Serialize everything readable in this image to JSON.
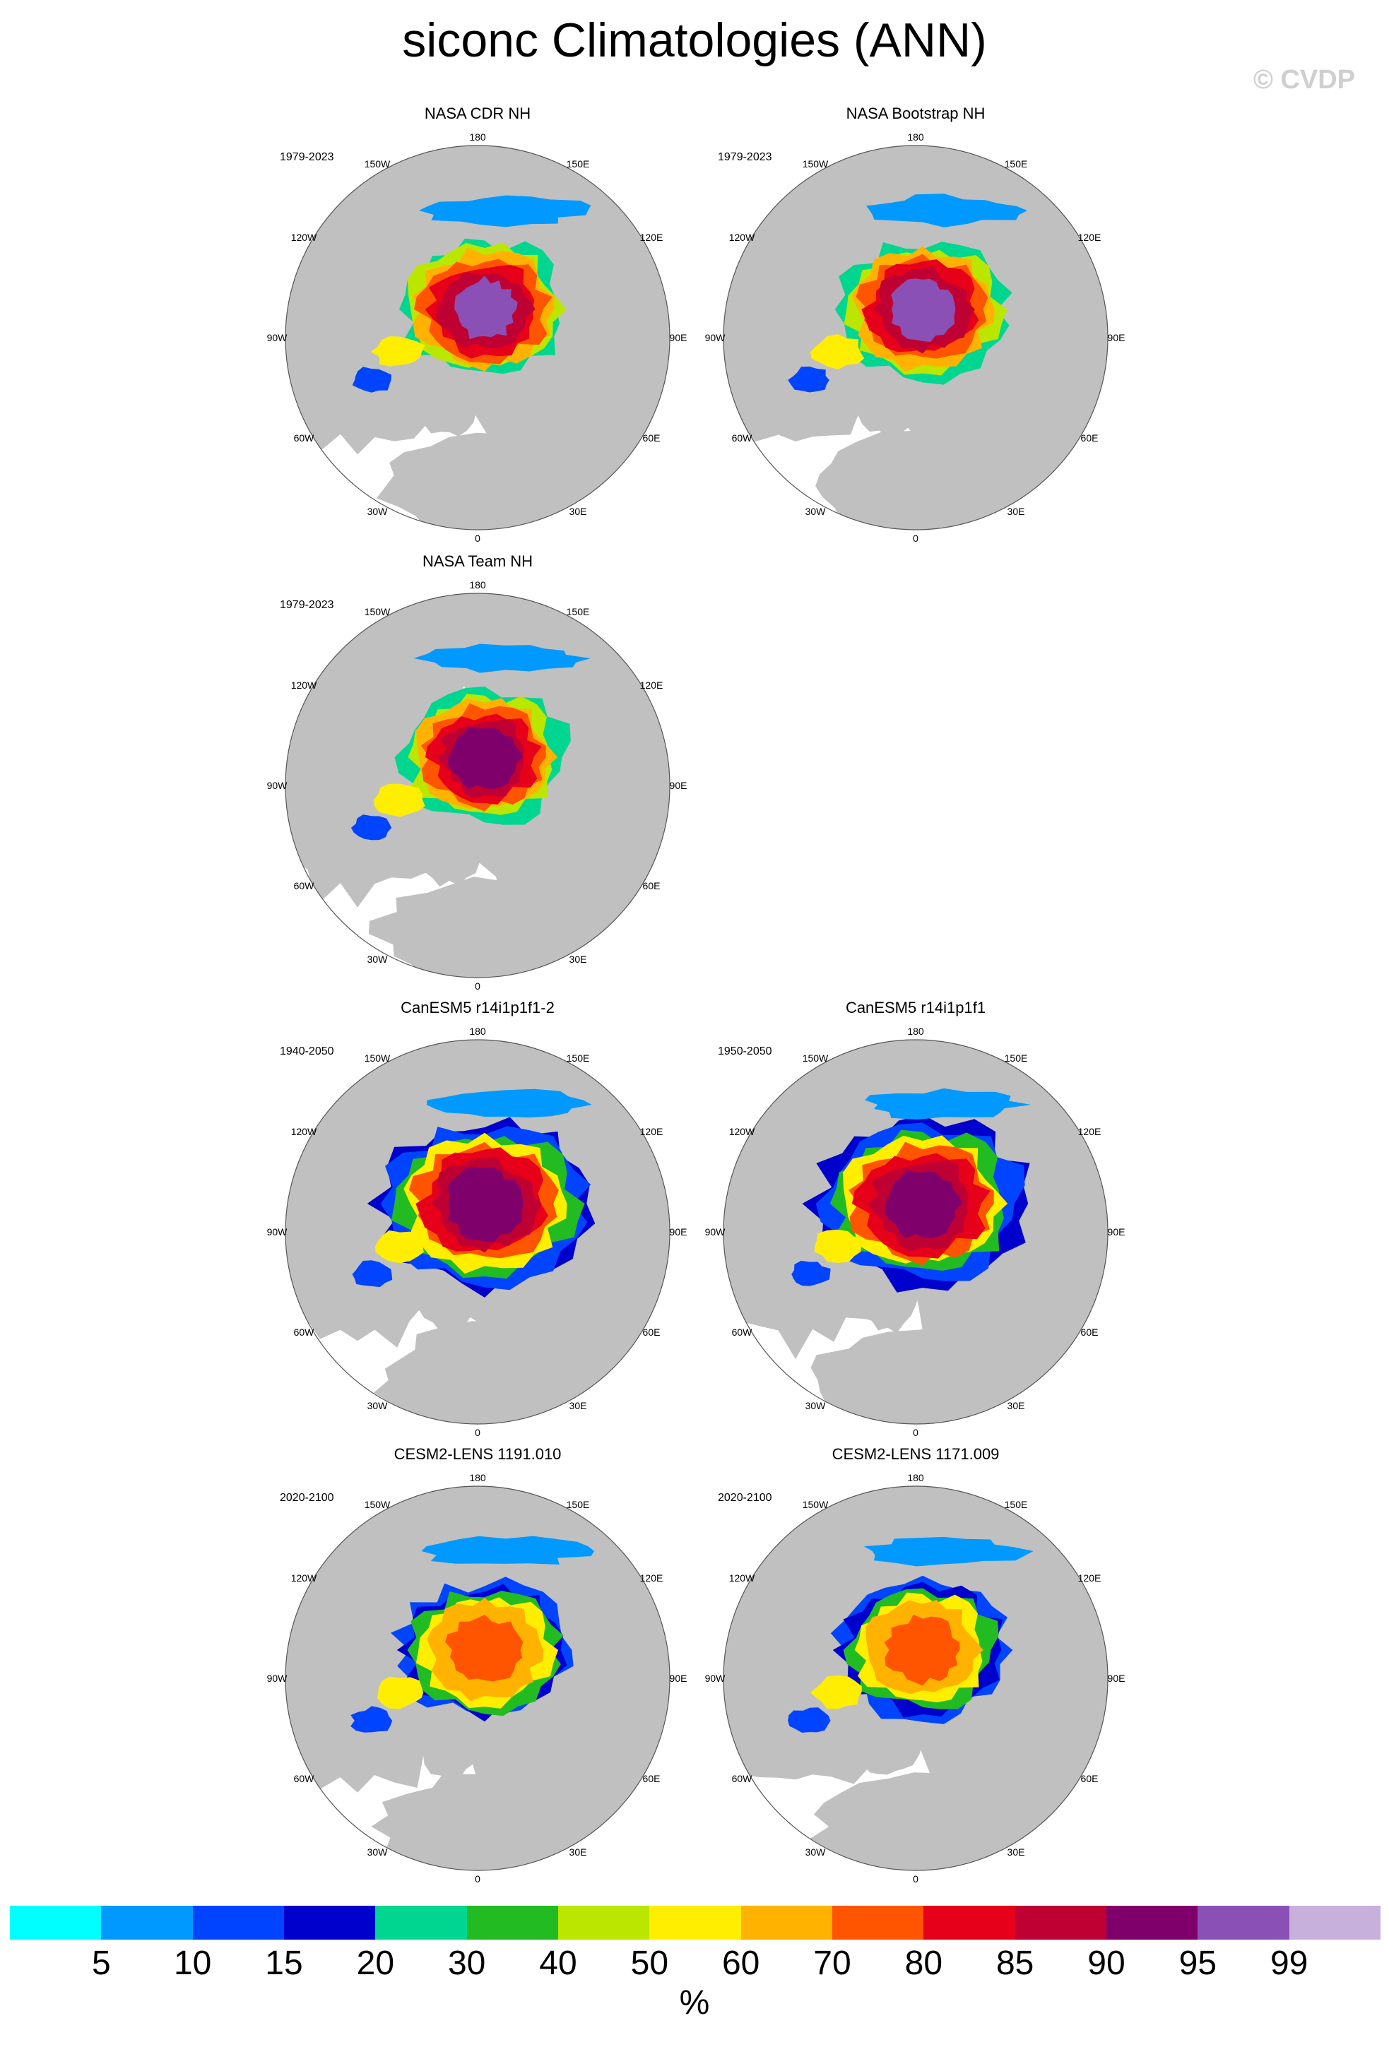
{
  "title": "siconc Climatologies (ANN)",
  "watermark": "© CVDP",
  "lon_labels": [
    "180",
    "150E",
    "120E",
    "90E",
    "60E",
    "30E",
    "0",
    "30W",
    "60W",
    "90W",
    "120W",
    "150W"
  ],
  "colors": {
    "land": "#c0c0c0",
    "missing_value": "#ffffff",
    "grid_outline": "#555555"
  },
  "chart_data": {
    "type": "heatmap",
    "variable": "siconc",
    "units": "%",
    "projection": "north-polar-stereographic",
    "panels": [
      {
        "title": "NASA CDR NH",
        "period": "1979-2023"
      },
      {
        "title": "NASA Bootstrap NH",
        "period": "1979-2023"
      },
      {
        "title": "NASA Team NH",
        "period": "1979-2023"
      },
      {
        "title": "CanESM5 r14i1p1f1-2",
        "period": "1940-2050"
      },
      {
        "title": "CanESM5 r14i1p1f1",
        "period": "1950-2050"
      },
      {
        "title": "CESM2-LENS 1191.010",
        "period": "2020-2100"
      },
      {
        "title": "CESM2-LENS 1171.009",
        "period": "2020-2100"
      }
    ],
    "colorbar": {
      "levels": [
        "5",
        "10",
        "15",
        "20",
        "30",
        "40",
        "50",
        "60",
        "70",
        "80",
        "85",
        "90",
        "95",
        "99"
      ],
      "colors": [
        "#00ffff",
        "#0099ff",
        "#0044ff",
        "#0000cc",
        "#00d68f",
        "#22bb22",
        "#bbe600",
        "#ffee00",
        "#ffb300",
        "#ff5500",
        "#e60019",
        "#bf0033",
        "#80006b",
        "#8b50b5",
        "#c8b0dc"
      ],
      "units": "%"
    }
  }
}
